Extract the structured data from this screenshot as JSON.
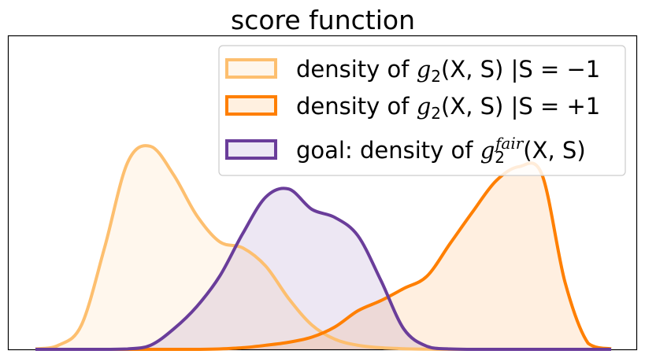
{
  "chart_data": {
    "type": "area",
    "title": "score function",
    "xlabel": "",
    "ylabel": "",
    "xticks": [],
    "yticks": [],
    "grid": false,
    "legend_position": "top-right",
    "x": [
      0.0,
      0.04,
      0.08,
      0.12,
      0.16,
      0.2,
      0.24,
      0.28,
      0.32,
      0.36,
      0.4,
      0.44,
      0.48,
      0.52,
      0.56,
      0.6,
      0.64,
      0.68,
      0.72,
      0.76,
      0.8,
      0.84,
      0.88,
      0.92,
      0.96,
      1.0
    ],
    "series": [
      {
        "name_parts": [
          "density of ",
          "g",
          "2",
          "(X, S) |S = −1"
        ],
        "color": "#fdbf6f",
        "fill": "#fef6ec",
        "values": [
          0.002,
          0.02,
          0.12,
          0.5,
          0.92,
          1.0,
          0.86,
          0.66,
          0.53,
          0.5,
          0.41,
          0.25,
          0.12,
          0.05,
          0.02,
          0.008,
          0.003,
          0.001,
          0,
          0,
          0,
          0,
          0,
          0,
          0,
          0
        ]
      },
      {
        "name_parts": [
          "density of ",
          "g",
          "2",
          "(X, S) |S = +1"
        ],
        "color": "#ff7f00",
        "fill": "#fff0e0",
        "values": [
          0,
          0,
          0,
          0,
          0,
          0,
          0,
          0,
          0.002,
          0.008,
          0.02,
          0.035,
          0.06,
          0.11,
          0.19,
          0.24,
          0.3,
          0.36,
          0.52,
          0.68,
          0.83,
          0.9,
          0.86,
          0.33,
          0.03,
          0.002
        ]
      },
      {
        "name_parts": [
          "goal: density of ",
          "g",
          "2",
          "fair",
          "(X, S)"
        ],
        "color": "#6a3d9a",
        "fill": "#ede8f5",
        "values": [
          0,
          0,
          0,
          0,
          0.002,
          0.02,
          0.1,
          0.21,
          0.36,
          0.57,
          0.75,
          0.79,
          0.69,
          0.65,
          0.56,
          0.34,
          0.1,
          0.015,
          0.002,
          0,
          0,
          0,
          0,
          0,
          0,
          0
        ]
      }
    ]
  }
}
